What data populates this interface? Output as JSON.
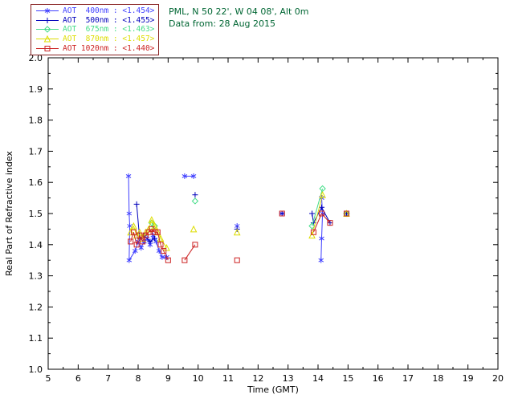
{
  "header": {
    "site_line": "PML, N 50 22', W 04 08', Alt 0m",
    "date_line": "Data from: 28 Aug 2015",
    "color": "#006633"
  },
  "legend": {
    "separator": " : ",
    "border_color": "#882222"
  },
  "chart_data": {
    "type": "scatter",
    "title": "",
    "xlabel": "Time (GMT)",
    "ylabel": "Real Part of Refractive index",
    "xlim": [
      5,
      20
    ],
    "ylim": [
      1.0,
      2.0
    ],
    "xtick_step": 1,
    "ytick_step": 0.1,
    "xtick_minor_step": 0.5,
    "ytick_minor_step": 0.05,
    "grid": false,
    "legend_position": "top-left",
    "series": [
      {
        "name": "AOT  400nm",
        "mean": "<1.454>",
        "color": "#3f3fff",
        "marker": "star",
        "points": [
          [
            7.68,
            1.62
          ],
          [
            7.7,
            1.5
          ],
          [
            7.72,
            1.46
          ],
          [
            7.7,
            1.35
          ],
          [
            7.9,
            1.38
          ],
          [
            8.0,
            1.41
          ],
          [
            8.1,
            1.39
          ],
          [
            8.2,
            1.41
          ],
          [
            8.3,
            1.42
          ],
          [
            8.4,
            1.4
          ],
          [
            8.5,
            1.43
          ],
          [
            8.6,
            1.41
          ],
          [
            8.7,
            1.38
          ],
          [
            8.8,
            1.36
          ],
          [
            8.95,
            1.36
          ],
          [
            9.55,
            1.62
          ],
          [
            9.85,
            1.62
          ],
          [
            11.3,
            1.46
          ],
          [
            12.8,
            1.5
          ],
          [
            14.1,
            1.35
          ],
          [
            14.12,
            1.42
          ],
          [
            14.15,
            1.5
          ],
          [
            14.12,
            1.55
          ],
          [
            14.95,
            1.5
          ]
        ]
      },
      {
        "name": "AOT  500nm",
        "mean": "<1.455>",
        "color": "#0000bb",
        "marker": "plus",
        "points": [
          [
            7.95,
            1.53
          ],
          [
            8.05,
            1.42
          ],
          [
            8.2,
            1.43
          ],
          [
            8.4,
            1.41
          ],
          [
            8.55,
            1.42
          ],
          [
            9.9,
            1.56
          ],
          [
            11.3,
            1.45
          ],
          [
            12.8,
            1.5
          ],
          [
            13.8,
            1.5
          ],
          [
            13.85,
            1.47
          ],
          [
            14.12,
            1.52
          ],
          [
            14.4,
            1.47
          ],
          [
            14.95,
            1.5
          ]
        ]
      },
      {
        "name": "AOT  675nm",
        "mean": "<1.463>",
        "color": "#44dd88",
        "marker": "diamond",
        "points": [
          [
            8.45,
            1.47
          ],
          [
            8.55,
            1.46
          ],
          [
            9.9,
            1.54
          ],
          [
            13.8,
            1.46
          ],
          [
            14.15,
            1.58
          ],
          [
            14.95,
            1.5
          ]
        ]
      },
      {
        "name": "AOT  870nm",
        "mean": "<1.457>",
        "color": "#dddd00",
        "marker": "triangle",
        "points": [
          [
            7.75,
            1.44
          ],
          [
            7.85,
            1.46
          ],
          [
            7.95,
            1.43
          ],
          [
            8.05,
            1.44
          ],
          [
            8.15,
            1.42
          ],
          [
            8.25,
            1.44
          ],
          [
            8.35,
            1.45
          ],
          [
            8.45,
            1.48
          ],
          [
            8.55,
            1.46
          ],
          [
            8.65,
            1.44
          ],
          [
            8.75,
            1.42
          ],
          [
            8.95,
            1.39
          ],
          [
            9.85,
            1.45
          ],
          [
            11.3,
            1.44
          ],
          [
            13.8,
            1.43
          ],
          [
            14.15,
            1.56
          ],
          [
            14.95,
            1.5
          ]
        ]
      },
      {
        "name": "AOT 1020nm",
        "mean": "<1.440>",
        "color": "#cc2222",
        "marker": "square",
        "points": [
          [
            7.75,
            1.41
          ],
          [
            7.85,
            1.44
          ],
          [
            7.95,
            1.4
          ],
          [
            8.05,
            1.43
          ],
          [
            8.15,
            1.41
          ],
          [
            8.25,
            1.43
          ],
          [
            8.35,
            1.44
          ],
          [
            8.45,
            1.45
          ],
          [
            8.55,
            1.44
          ],
          [
            8.65,
            1.44
          ],
          [
            8.75,
            1.4
          ],
          [
            8.85,
            1.38
          ],
          [
            9.0,
            1.35
          ],
          [
            9.55,
            1.35
          ],
          [
            9.9,
            1.4
          ],
          [
            11.3,
            1.35
          ],
          [
            12.8,
            1.5
          ],
          [
            13.85,
            1.44
          ],
          [
            14.12,
            1.5
          ],
          [
            14.4,
            1.47
          ],
          [
            14.95,
            1.5
          ]
        ]
      }
    ]
  }
}
